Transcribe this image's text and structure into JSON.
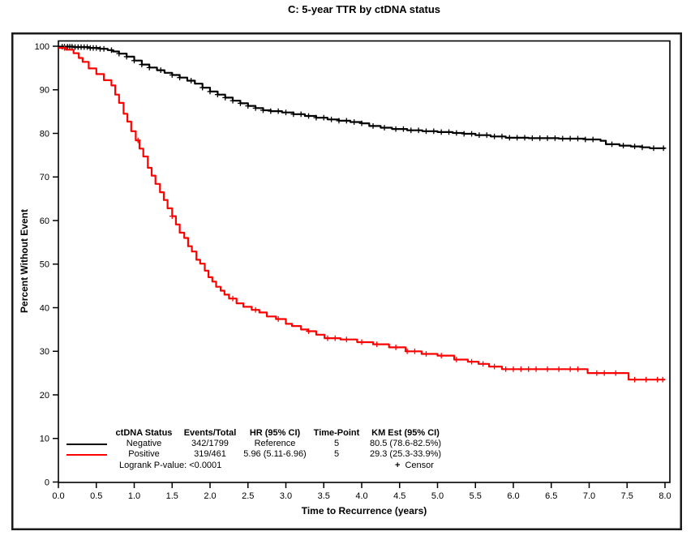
{
  "title": "C: 5-year TTR by ctDNA status",
  "chart_data": {
    "type": "line",
    "subtype": "kaplan-meier-step",
    "title": "C: 5-year TTR by ctDNA status",
    "xlabel": "Time to Recurrence (years)",
    "ylabel": "Percent Without Event",
    "xlim": [
      0,
      8
    ],
    "ylim": [
      0,
      100
    ],
    "grid": false,
    "x_tick_labels": [
      "0.0",
      "0.5",
      "1.0",
      "1.5",
      "2.0",
      "2.5",
      "3.0",
      "3.5",
      "4.0",
      "4.5",
      "5.0",
      "5.5",
      "6.0",
      "6.5",
      "7.0",
      "7.5",
      "8.0"
    ],
    "x_tick_values": [
      0,
      0.5,
      1,
      1.5,
      2,
      2.5,
      3,
      3.5,
      4,
      4.5,
      5,
      5.5,
      6,
      6.5,
      7,
      7.5,
      8
    ],
    "y_tick_values": [
      0,
      10,
      20,
      30,
      40,
      50,
      60,
      70,
      80,
      90,
      100
    ],
    "censor_marker": "+",
    "series": [
      {
        "name": "Negative",
        "color": "#000000",
        "points": [
          [
            0,
            99.9
          ],
          [
            0.2,
            99.8
          ],
          [
            0.4,
            99.6
          ],
          [
            0.55,
            99.4
          ],
          [
            0.65,
            99.1
          ],
          [
            0.72,
            98.8
          ],
          [
            0.8,
            98.3
          ],
          [
            0.9,
            97.6
          ],
          [
            1.0,
            96.7
          ],
          [
            1.1,
            95.8
          ],
          [
            1.2,
            95.1
          ],
          [
            1.3,
            94.5
          ],
          [
            1.4,
            93.9
          ],
          [
            1.5,
            93.4
          ],
          [
            1.6,
            92.8
          ],
          [
            1.7,
            92.1
          ],
          [
            1.8,
            91.4
          ],
          [
            1.9,
            90.5
          ],
          [
            2.0,
            89.6
          ],
          [
            2.1,
            88.9
          ],
          [
            2.2,
            88.2
          ],
          [
            2.3,
            87.5
          ],
          [
            2.4,
            86.9
          ],
          [
            2.5,
            86.3
          ],
          [
            2.6,
            85.8
          ],
          [
            2.7,
            85.3
          ],
          [
            2.8,
            85.1
          ],
          [
            2.95,
            84.8
          ],
          [
            3.1,
            84.4
          ],
          [
            3.25,
            84.0
          ],
          [
            3.4,
            83.6
          ],
          [
            3.55,
            83.2
          ],
          [
            3.7,
            82.9
          ],
          [
            3.85,
            82.6
          ],
          [
            4.0,
            82.3
          ],
          [
            4.1,
            81.7
          ],
          [
            4.25,
            81.3
          ],
          [
            4.4,
            81.0
          ],
          [
            4.6,
            80.7
          ],
          [
            4.8,
            80.5
          ],
          [
            5.0,
            80.3
          ],
          [
            5.2,
            80.1
          ],
          [
            5.35,
            79.9
          ],
          [
            5.5,
            79.6
          ],
          [
            5.7,
            79.3
          ],
          [
            5.9,
            79.0
          ],
          [
            6.2,
            78.9
          ],
          [
            6.6,
            78.8
          ],
          [
            6.95,
            78.6
          ],
          [
            7.15,
            78.3
          ],
          [
            7.22,
            77.5
          ],
          [
            7.4,
            77.2
          ],
          [
            7.55,
            77.0
          ],
          [
            7.7,
            76.8
          ],
          [
            7.8,
            76.6
          ],
          [
            8.0,
            76.5
          ]
        ],
        "censor_times": [
          0.05,
          0.08,
          0.12,
          0.15,
          0.18,
          0.22,
          0.26,
          0.3,
          0.34,
          0.38,
          0.42,
          0.46,
          0.5,
          0.55,
          0.6,
          0.7,
          0.8,
          0.9,
          1.0,
          1.1,
          1.2,
          1.35,
          1.5,
          1.6,
          1.75,
          1.9,
          2.0,
          2.1,
          2.2,
          2.3,
          2.4,
          2.5,
          2.6,
          2.7,
          2.8,
          2.9,
          3.0,
          3.1,
          3.2,
          3.3,
          3.4,
          3.5,
          3.6,
          3.7,
          3.8,
          3.9,
          4.0,
          4.15,
          4.3,
          4.45,
          4.55,
          4.65,
          4.75,
          4.85,
          4.95,
          5.05,
          5.15,
          5.25,
          5.35,
          5.45,
          5.55,
          5.65,
          5.75,
          5.85,
          5.95,
          6.05,
          6.15,
          6.25,
          6.35,
          6.45,
          6.55,
          6.65,
          6.75,
          6.85,
          6.95,
          7.05,
          7.3,
          7.45,
          7.6,
          7.7,
          7.85,
          7.98
        ]
      },
      {
        "name": "Positive",
        "color": "#fe0000",
        "points": [
          [
            0,
            99.6
          ],
          [
            0.1,
            99.2
          ],
          [
            0.2,
            98.4
          ],
          [
            0.27,
            97.3
          ],
          [
            0.32,
            96.4
          ],
          [
            0.4,
            94.9
          ],
          [
            0.5,
            93.6
          ],
          [
            0.6,
            92.2
          ],
          [
            0.7,
            91.0
          ],
          [
            0.75,
            88.9
          ],
          [
            0.8,
            87.0
          ],
          [
            0.86,
            84.5
          ],
          [
            0.91,
            82.7
          ],
          [
            0.96,
            80.5
          ],
          [
            1.02,
            78.4
          ],
          [
            1.07,
            76.5
          ],
          [
            1.12,
            74.7
          ],
          [
            1.18,
            72.1
          ],
          [
            1.23,
            70.3
          ],
          [
            1.28,
            68.4
          ],
          [
            1.34,
            66.5
          ],
          [
            1.39,
            64.7
          ],
          [
            1.44,
            62.8
          ],
          [
            1.5,
            61.0
          ],
          [
            1.55,
            59.1
          ],
          [
            1.6,
            57.2
          ],
          [
            1.66,
            56.0
          ],
          [
            1.71,
            54.1
          ],
          [
            1.76,
            52.9
          ],
          [
            1.82,
            51.0
          ],
          [
            1.87,
            50.1
          ],
          [
            1.93,
            48.5
          ],
          [
            1.98,
            47.0
          ],
          [
            2.03,
            46.0
          ],
          [
            2.08,
            44.8
          ],
          [
            2.14,
            43.9
          ],
          [
            2.19,
            43.0
          ],
          [
            2.25,
            42.1
          ],
          [
            2.35,
            41.0
          ],
          [
            2.44,
            40.2
          ],
          [
            2.55,
            39.5
          ],
          [
            2.65,
            38.9
          ],
          [
            2.75,
            38.0
          ],
          [
            2.87,
            37.4
          ],
          [
            3.0,
            36.3
          ],
          [
            3.08,
            35.8
          ],
          [
            3.2,
            35.0
          ],
          [
            3.29,
            34.6
          ],
          [
            3.4,
            33.8
          ],
          [
            3.51,
            33.0
          ],
          [
            3.72,
            32.7
          ],
          [
            3.94,
            32.1
          ],
          [
            4.15,
            31.6
          ],
          [
            4.36,
            30.9
          ],
          [
            4.58,
            30.0
          ],
          [
            4.79,
            29.4
          ],
          [
            5.0,
            29.0
          ],
          [
            5.22,
            28.1
          ],
          [
            5.4,
            27.6
          ],
          [
            5.54,
            27.1
          ],
          [
            5.68,
            26.5
          ],
          [
            5.85,
            25.9
          ],
          [
            6.98,
            25.0
          ],
          [
            7.52,
            23.5
          ],
          [
            8.0,
            23.5
          ]
        ],
        "censor_times": [
          0.08,
          1.05,
          1.5,
          2.3,
          2.6,
          2.9,
          3.3,
          3.55,
          3.65,
          3.8,
          4.0,
          4.2,
          4.45,
          4.6,
          4.7,
          4.85,
          5.05,
          5.25,
          5.45,
          5.6,
          5.75,
          5.9,
          6.0,
          6.1,
          6.2,
          6.3,
          6.45,
          6.6,
          6.75,
          6.85,
          7.1,
          7.2,
          7.35,
          7.6,
          7.75,
          7.9,
          7.97
        ]
      }
    ]
  },
  "legend_table": {
    "headers": [
      "ctDNA Status",
      "Events/Total",
      "HR (95% CI)",
      "Time-Point",
      "KM Est (95% CI)"
    ],
    "rows": [
      {
        "group": "Negative",
        "events_total": "342/1799",
        "hr": "Reference",
        "time_point": "5",
        "km_est": "80.5 (78.6-82.5%)"
      },
      {
        "group": "Positive",
        "events_total": "319/461",
        "hr": "5.96 (5.11-6.96)",
        "time_point": "5",
        "km_est": "29.3 (25.3-33.9%)"
      }
    ],
    "footnote": "Logrank P-value: <0.0001",
    "censor_marker": "+",
    "censor_label": "Censor"
  }
}
